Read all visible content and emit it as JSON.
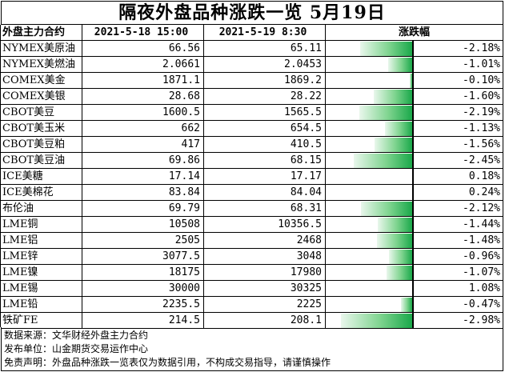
{
  "title": "隔夜外盘品种涨跌一览 5月19日",
  "headers": {
    "name": "外盘主力合约",
    "prev": "2021-5-18 15:00",
    "curr": "2021-5-19 8:30",
    "change": "涨跌幅"
  },
  "chart_data": {
    "type": "table",
    "title": "隔夜外盘品种涨跌一览 5月19日",
    "columns": [
      "外盘主力合约",
      "2021-5-18 15:00",
      "2021-5-19 8:30",
      "涨跌幅"
    ],
    "rows": [
      {
        "name": "NYMEX美原油",
        "prev": "66.56",
        "curr": "65.11",
        "pct": "-2.18%",
        "value": -2.18
      },
      {
        "name": "NYMEX美燃油",
        "prev": "2.0661",
        "curr": "2.0453",
        "pct": "-1.01%",
        "value": -1.01
      },
      {
        "name": "COMEX美金",
        "prev": "1871.1",
        "curr": "1869.2",
        "pct": "-0.10%",
        "value": -0.1
      },
      {
        "name": "COMEX美银",
        "prev": "28.68",
        "curr": "28.22",
        "pct": "-1.60%",
        "value": -1.6
      },
      {
        "name": "CBOT美豆",
        "prev": "1600.5",
        "curr": "1565.5",
        "pct": "-2.19%",
        "value": -2.19
      },
      {
        "name": "CBOT美玉米",
        "prev": "662",
        "curr": "654.5",
        "pct": "-1.13%",
        "value": -1.13
      },
      {
        "name": "CBOT美豆粕",
        "prev": "417",
        "curr": "410.5",
        "pct": "-1.56%",
        "value": -1.56
      },
      {
        "name": "CBOT美豆油",
        "prev": "69.86",
        "curr": "68.15",
        "pct": "-2.45%",
        "value": -2.45
      },
      {
        "name": "ICE美糖",
        "prev": "17.14",
        "curr": "17.17",
        "pct": "0.18%",
        "value": 0.18
      },
      {
        "name": "ICE美棉花",
        "prev": "83.84",
        "curr": "84.04",
        "pct": "0.24%",
        "value": 0.24
      },
      {
        "name": "布伦油",
        "prev": "69.79",
        "curr": "68.31",
        "pct": "-2.12%",
        "value": -2.12
      },
      {
        "name": "LME铜",
        "prev": "10508",
        "curr": "10356.5",
        "pct": "-1.44%",
        "value": -1.44
      },
      {
        "name": "LME铝",
        "prev": "2505",
        "curr": "2468",
        "pct": "-1.48%",
        "value": -1.48
      },
      {
        "name": "LME锌",
        "prev": "3077.5",
        "curr": "3048",
        "pct": "-0.96%",
        "value": -0.96
      },
      {
        "name": "LME镍",
        "prev": "18175",
        "curr": "17980",
        "pct": "-1.07%",
        "value": -1.07
      },
      {
        "name": "LME锡",
        "prev": "30000",
        "curr": "30325",
        "pct": "1.08%",
        "value": 1.08
      },
      {
        "name": "LME铅",
        "prev": "2235.5",
        "curr": "2225",
        "pct": "-0.47%",
        "value": -0.47
      },
      {
        "name": "铁矿FE",
        "prev": "214.5",
        "curr": "208.1",
        "pct": "-2.98%",
        "value": -2.98
      }
    ]
  },
  "footer": {
    "source": "数据来源：文华财经外盘主力合约",
    "publisher": "发布单位：山金期货交易运作中心",
    "disclaimer": "免责声明：外盘品种涨跌一览表仅为数据引用，不构成交易指导，请谨慎操作"
  },
  "colors": {
    "negative": "#1aa84a",
    "positive": "#ff1010"
  }
}
